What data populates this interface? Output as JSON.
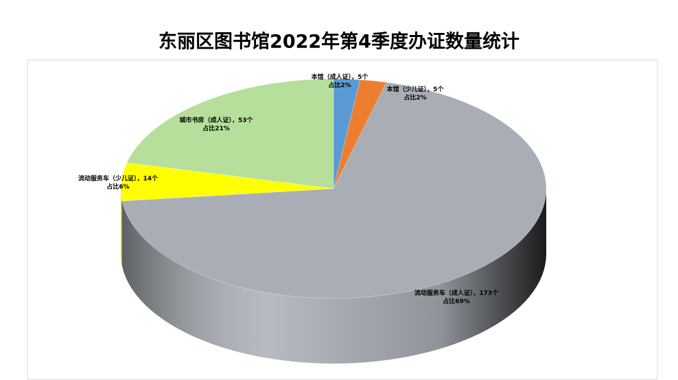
{
  "chart_data": {
    "type": "pie3d",
    "title": "东丽区图书馆2022年第4季度办证数量统计",
    "categories": [
      "本馆（成人证）",
      "本馆（少儿证）",
      "流动服务车（成人证）",
      "流动服务车（少儿证）",
      "城市书房（成人证）"
    ],
    "values": [
      5,
      5,
      173,
      14,
      53
    ],
    "value_labels": [
      "5个",
      "5个",
      "173个",
      "14个",
      "53个"
    ],
    "label_separator": "，",
    "percent_labels": [
      "占比2%",
      "占比2%",
      "占比69%",
      "占比6%",
      "占比21%"
    ],
    "colors": [
      "#5b9bd5",
      "#ed7d31",
      "#a9aeb6",
      "#ffff00",
      "#b5df9a"
    ]
  }
}
